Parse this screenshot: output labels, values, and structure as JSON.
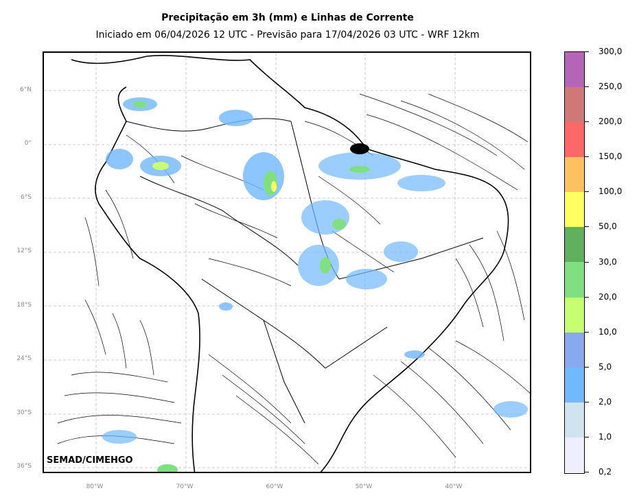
{
  "title": "Precipitação em 3h (mm) e Linhas de Corrente",
  "subtitle": "Iniciado em 06/04/2026 12 UTC - Previsão para 17/04/2026 03 UTC - WRF 12km",
  "credit": "SEMAD/CIMEHGO",
  "lat_labels": [
    "6°N",
    "0°",
    "6°S",
    "12°S",
    "18°S",
    "24°S",
    "30°S",
    "36°S"
  ],
  "lon_labels": [
    "80°W",
    "70°W",
    "60°W",
    "50°W",
    "40°W"
  ],
  "colorbar": {
    "labels": [
      "300,0",
      "250,0",
      "200,0",
      "150,0",
      "100,0",
      "50,0",
      "30,0",
      "20,0",
      "10,0",
      "5,0",
      "2,0",
      "1,0",
      "0,2"
    ],
    "colors": [
      "#b565b8",
      "#d07878",
      "#ff6868",
      "#ffc060",
      "#ffff60",
      "#60b060",
      "#80e080",
      "#c8ff70",
      "#88a8f0",
      "#70b8ff",
      "#cfe4ee",
      "#eeeefc"
    ]
  }
}
